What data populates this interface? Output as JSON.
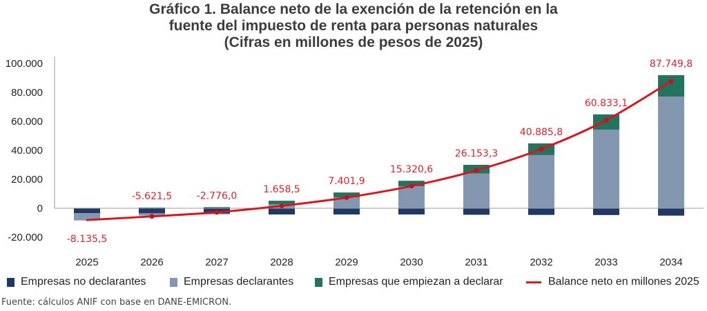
{
  "title_lines": [
    "Gráfico 1. Balance neto de la exención de la retención en la",
    "fuente del impuesto de renta para personas naturales",
    "(Cifras en millones de pesos de 2025)"
  ],
  "chart_data": {
    "type": "bar",
    "subtype": "stacked bar with line overlay",
    "title": "Gráfico 1. Balance neto de la exención de la retención en la fuente del impuesto de renta para personas naturales (Cifras en millones de pesos de 2025)",
    "xlabel": "",
    "ylabel": "",
    "ylim": [
      -20000,
      100000
    ],
    "yticks": [
      -20000,
      0,
      20000,
      40000,
      60000,
      80000,
      100000
    ],
    "ytick_labels": [
      "-20.000",
      "0",
      "20.000",
      "40.000",
      "60.000",
      "80.000",
      "100.000"
    ],
    "grid": false,
    "legend_position": "bottom",
    "categories": [
      "2025",
      "2026",
      "2027",
      "2028",
      "2029",
      "2030",
      "2031",
      "2032",
      "2033",
      "2034"
    ],
    "series": [
      {
        "name": "Empresas no declarantes",
        "type": "bar",
        "color": "#1f3864",
        "values": [
          -3400,
          -3500,
          -3700,
          -4300,
          -4300,
          -4300,
          -4500,
          -4600,
          -4700,
          -5100
        ]
      },
      {
        "name": "Empresas declarantes",
        "type": "bar",
        "color": "#8497b0",
        "values": [
          -5000,
          -1500,
          -500,
          2700,
          7600,
          15200,
          24000,
          36700,
          54300,
          77100
        ]
      },
      {
        "name": "Empresas que empiezan a declarar",
        "type": "bar",
        "color": "#23745f",
        "values": [
          0,
          500,
          800,
          2500,
          3300,
          3800,
          6000,
          8100,
          10500,
          14800
        ]
      },
      {
        "name": "Balance neto en millones 2025",
        "type": "line",
        "color": "#d9151e",
        "values": [
          -8135.5,
          -5621.5,
          -2776.0,
          1658.5,
          7401.9,
          15320.6,
          26153.3,
          40885.8,
          60833.1,
          87749.8
        ],
        "labels": [
          "-8.135,5",
          "-5.621,5",
          "-2.776,0",
          "1.658,5",
          "7.401,9",
          "15.320,6",
          "26.153,3",
          "40.885,8",
          "60.833,1",
          "87.749,8"
        ]
      }
    ]
  },
  "legend": {
    "items": [
      {
        "label": "Empresas no declarantes",
        "color": "#1f3864",
        "kind": "box"
      },
      {
        "label": "Empresas declarantes",
        "color": "#8497b0",
        "kind": "box"
      },
      {
        "label": "Empresas que empiezan a declarar",
        "color": "#23745f",
        "kind": "box"
      },
      {
        "label": "Balance neto en millones 2025",
        "color": "#d9151e",
        "kind": "line"
      }
    ]
  },
  "source": "Fuente: cálculos ANIF con base en DANE-EMICRON."
}
